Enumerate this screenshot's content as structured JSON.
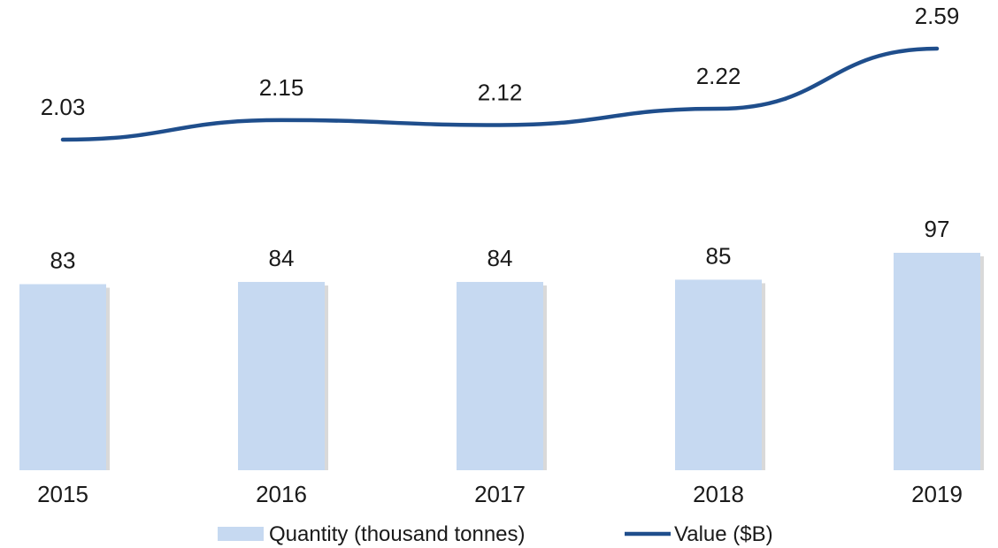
{
  "chart_data": {
    "type": "bar",
    "categories": [
      "2015",
      "2016",
      "2017",
      "2018",
      "2019"
    ],
    "series": [
      {
        "name": "Quantity (thousand tonnes)",
        "type": "bar",
        "values": [
          83,
          84,
          84,
          85,
          97
        ],
        "color": "#c6d9f1",
        "labels": [
          "83",
          "84",
          "84",
          "85",
          "97"
        ]
      },
      {
        "name": "Value ($B)",
        "type": "line",
        "values": [
          2.03,
          2.15,
          2.12,
          2.22,
          2.59
        ],
        "color": "#1f4e8c",
        "labels": [
          "2.03",
          "2.15",
          "2.12",
          "2.22",
          "2.59"
        ]
      }
    ],
    "title": "",
    "xlabel": "",
    "ylabel": "",
    "legend": "bottom",
    "grid": false
  }
}
